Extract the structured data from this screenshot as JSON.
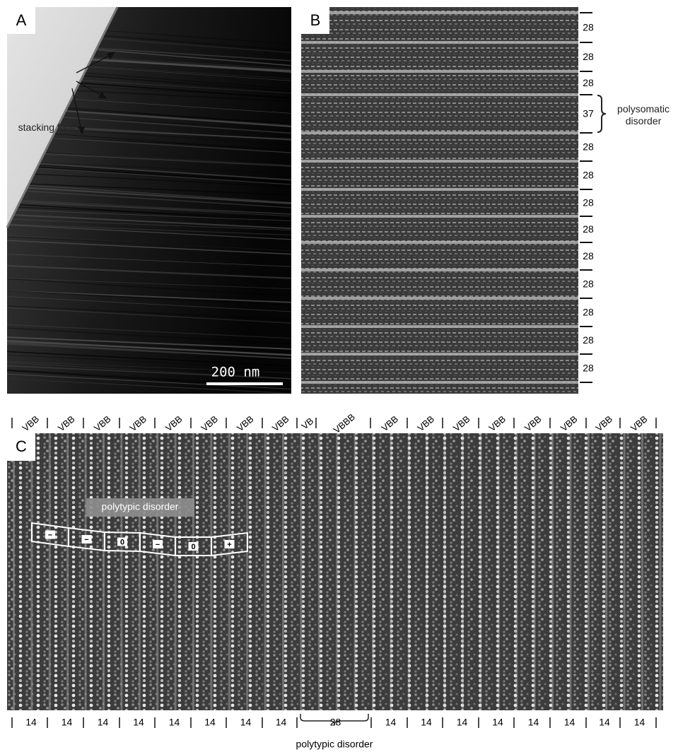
{
  "panels": [
    {
      "label": "A",
      "annotation": "stacking faults",
      "scale_bar": "200 nm"
    },
    {
      "label": "B",
      "layer_widths": [
        28,
        28,
        28,
        37,
        28,
        28,
        28,
        28,
        28,
        28,
        28,
        28,
        28
      ],
      "annotation": "polysomatic disorder"
    },
    {
      "label": "C",
      "top_labels": [
        "VBB",
        "VBB",
        "VBB",
        "VBB",
        "VBB",
        "VBB",
        "VBB",
        "VBB",
        "VB",
        "VBBB",
        "VBB",
        "VBB",
        "VBB",
        "VBB",
        "VBB",
        "VBB",
        "VBB",
        "VBB"
      ],
      "box_labels": [
        "−",
        "−",
        "0",
        "−",
        "0",
        "+"
      ],
      "box_annotation": "polytypic disorder",
      "bottom_widths": [
        14,
        14,
        14,
        14,
        14,
        14,
        14,
        14,
        28,
        14,
        14,
        14,
        14,
        14,
        14,
        14,
        14
      ],
      "bottom_annotation": "polytypic disorder"
    }
  ]
}
